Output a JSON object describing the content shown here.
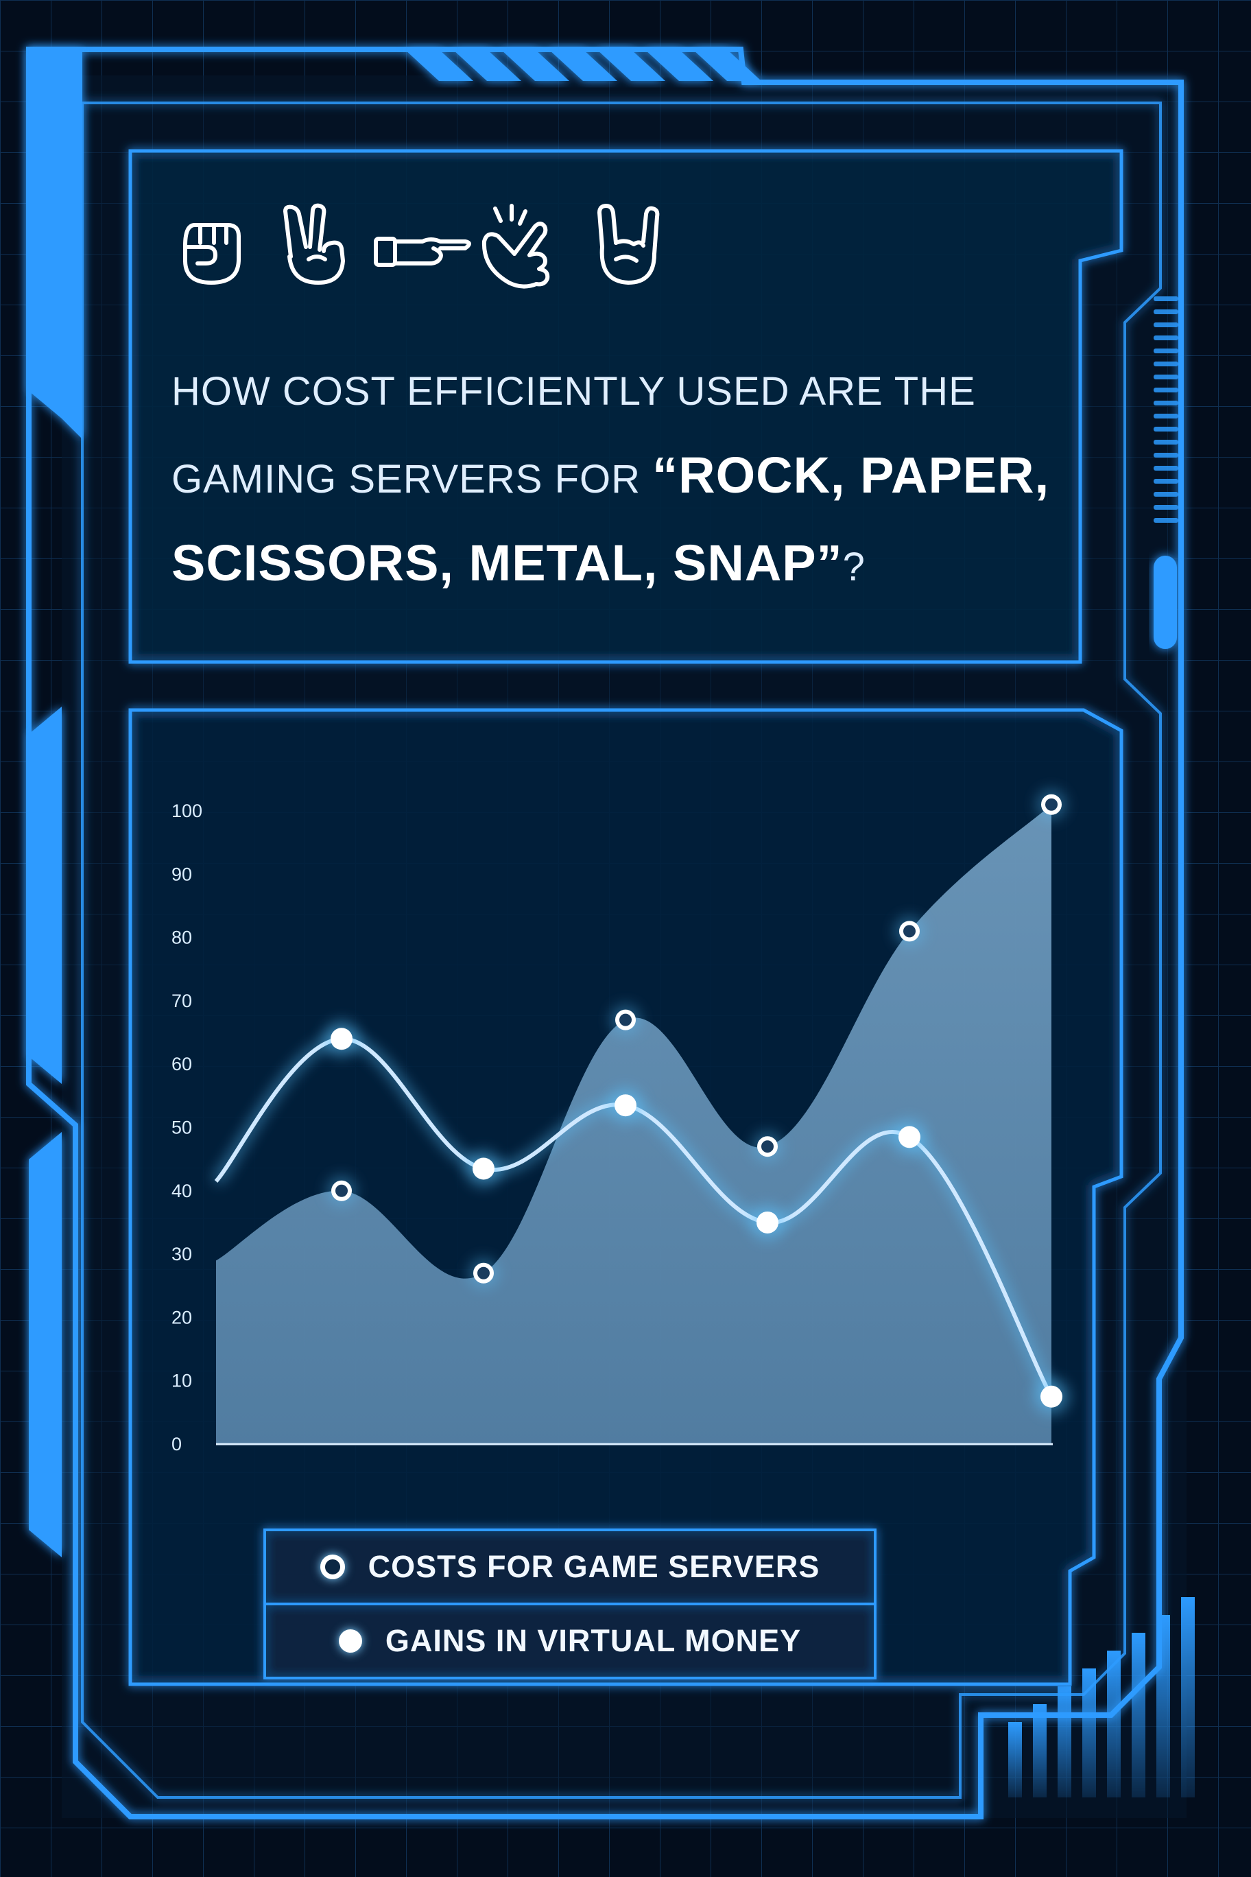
{
  "headline": {
    "line1": "HOW COST EFFICIENTLY USED ARE THE",
    "line2_light": "GAMING SERVERS FOR ",
    "line2_bold": "“ROCK, PAPER,",
    "line3_bold": "SCISSORS, METAL, SNAP”",
    "line3_tail": "?"
  },
  "icons": [
    "fist-icon",
    "peace-hand-icon",
    "pointing-hand-icon",
    "snapping-hand-icon",
    "metal-horns-hand-icon"
  ],
  "colors": {
    "background": "#030d1c",
    "frame": "#2d9bff",
    "grid": "#0f2f52",
    "area": "#6f9ec4",
    "line": "#cfe8ff"
  },
  "chart_data": {
    "type": "line",
    "title": "",
    "xlabel": "",
    "ylabel": "",
    "ylim": [
      0,
      100
    ],
    "yticks": [
      0,
      10,
      20,
      30,
      40,
      50,
      60,
      70,
      80,
      90,
      100
    ],
    "x": [
      1,
      2,
      3,
      4,
      5,
      6
    ],
    "series": [
      {
        "name": "COSTS FOR GAME SERVERS",
        "style": "area",
        "marker": "hollow",
        "start": 29,
        "values": [
          40,
          27,
          67,
          47,
          81,
          101
        ]
      },
      {
        "name": "GAINS IN VIRTUAL MONEY",
        "style": "line",
        "marker": "filled",
        "start": 41.5,
        "values": [
          64,
          43.5,
          53.5,
          35,
          48.5,
          7.5
        ]
      }
    ],
    "grid": true,
    "legend_position": "bottom-center"
  }
}
